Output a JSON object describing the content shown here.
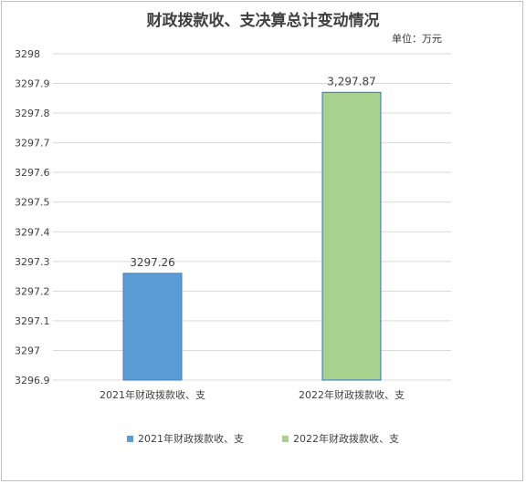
{
  "chart_data": {
    "type": "bar",
    "title": "财政拨款收、支决算总计变动情况",
    "unit_label": "单位：万元",
    "categories": [
      "2021年财政拨款收、支",
      "2022年财政拨款收、支"
    ],
    "values": [
      3297.26,
      3297.87
    ],
    "data_labels": [
      "3297.26",
      "3,297.87"
    ],
    "ylim": [
      3296.9,
      3298
    ],
    "yticks": [
      "3298",
      "3297.9",
      "3297.8",
      "3297.7",
      "3297.6",
      "3297.5",
      "3297.4",
      "3297.3",
      "3297.2",
      "3297.1",
      "3297",
      "3296.9"
    ],
    "colors": [
      "#5b9bd5",
      "#a9d18e"
    ],
    "edge_colors": [
      "#4a7fb5",
      "#2f6fdb"
    ],
    "grid": true,
    "legend": {
      "position": "bottom",
      "entries": [
        "2021年财政拨款收、支",
        "2022年财政拨款收、支"
      ]
    }
  }
}
